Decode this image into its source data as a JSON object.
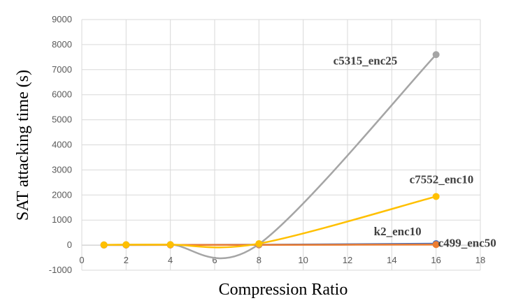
{
  "chart_data": {
    "type": "line",
    "title": "",
    "xlabel": "Compression Ratio",
    "ylabel": "SAT attacking time (s)",
    "xlim": [
      0,
      18
    ],
    "ylim": [
      -1000,
      9000
    ],
    "x_ticks": [
      0,
      2,
      4,
      6,
      8,
      10,
      12,
      14,
      16,
      18
    ],
    "y_ticks": [
      -1000,
      0,
      1000,
      2000,
      3000,
      4000,
      5000,
      6000,
      7000,
      8000,
      9000
    ],
    "grid": true,
    "legend": "none",
    "smoothed": true,
    "series": [
      {
        "name": "k2_enc10",
        "color": "#4472c4",
        "x": [
          1,
          2,
          4,
          8,
          16
        ],
        "y": [
          5,
          8,
          10,
          15,
          60
        ]
      },
      {
        "name": "c499_enc50",
        "color": "#ed7d31",
        "x": [
          1,
          2,
          4,
          8,
          16
        ],
        "y": [
          5,
          6,
          8,
          10,
          20
        ]
      },
      {
        "name": "c5315_enc25",
        "color": "#a5a5a5",
        "x": [
          1,
          2,
          4,
          8,
          16
        ],
        "y": [
          10,
          15,
          20,
          40,
          7600
        ]
      },
      {
        "name": "c7552_enc10",
        "color": "#ffc000",
        "x": [
          1,
          2,
          4,
          8,
          16
        ],
        "y": [
          10,
          15,
          20,
          60,
          1940
        ]
      }
    ]
  }
}
